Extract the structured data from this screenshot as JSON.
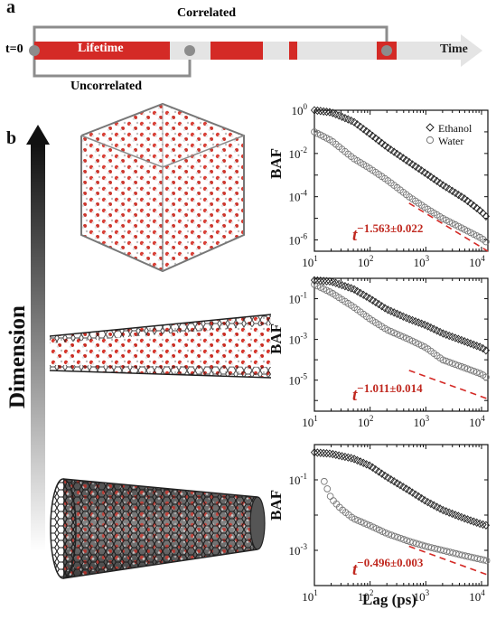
{
  "panel_a": {
    "letter": "a",
    "t0_label": "t=0",
    "lifetime_label": "Lifetime",
    "time_label": "Time",
    "correlated_label": "Correlated",
    "uncorrelated_label": "Uncorrelated",
    "colors": {
      "red": "#d42a26",
      "gray_bar": "#e4e4e4",
      "bracket": "#8c8c8c"
    }
  },
  "panel_b": {
    "letter": "b",
    "dimension_label": "Dimension",
    "shared_xlabel": "Lag (ps)",
    "structures": [
      "bulk-box",
      "wide-nanotube",
      "narrow-nanotube"
    ]
  },
  "chart_data": [
    {
      "type": "scatter",
      "ylabel": "BAF",
      "xscale": "log",
      "yscale": "log",
      "xlim": [
        10,
        13000
      ],
      "ylim": [
        3e-07,
        1
      ],
      "x_ticks": [
        "10^1",
        "10^2",
        "10^3",
        "10^4"
      ],
      "y_ticks": [
        "10^0",
        "10^-2",
        "10^-4",
        "10^-6"
      ],
      "legend": {
        "placement": "top-right",
        "entries": [
          "Ethanol",
          "Water"
        ]
      },
      "annotation": {
        "base": "t",
        "exponent": "−1.563±0.022",
        "color": "#c0281f"
      },
      "series": [
        {
          "name": "Ethanol",
          "marker": "diamond",
          "x": [
            10,
            20,
            50,
            100,
            200,
            500,
            1000,
            2000,
            5000,
            10000,
            13000
          ],
          "y": [
            1,
            0.8,
            0.3,
            0.08,
            0.02,
            0.004,
            0.0012,
            0.00035,
            8e-05,
            2e-05,
            1e-05
          ]
        },
        {
          "name": "Water",
          "marker": "circle",
          "x": [
            10,
            20,
            50,
            100,
            200,
            500,
            1000,
            2000,
            5000,
            10000,
            13000
          ],
          "y": [
            0.1,
            0.04,
            0.006,
            0.002,
            0.0006,
            0.0001,
            3e-05,
            1e-05,
            3e-06,
            1.2e-06,
            7e-07
          ]
        }
      ],
      "fit_line": {
        "x": [
          500,
          13000
        ],
        "y": [
          5e-05,
          3e-07
        ],
        "style": "dashed",
        "color": "#d42a26"
      }
    },
    {
      "type": "scatter",
      "ylabel": "BAF",
      "xscale": "log",
      "yscale": "log",
      "xlim": [
        10,
        13000
      ],
      "ylim": [
        3e-07,
        1
      ],
      "x_ticks": [
        "10^1",
        "10^2",
        "10^3",
        "10^4"
      ],
      "y_ticks": [
        "10^-1",
        "10^-3",
        "10^-5"
      ],
      "annotation": {
        "base": "t",
        "exponent": "−1.011±0.014",
        "color": "#c0281f"
      },
      "series": [
        {
          "name": "Ethanol",
          "marker": "diamond",
          "x": [
            10,
            20,
            50,
            100,
            200,
            500,
            1000,
            2000,
            5000,
            10000,
            13000
          ],
          "y": [
            0.8,
            0.7,
            0.3,
            0.1,
            0.03,
            0.01,
            0.005,
            0.002,
            0.0008,
            0.0004,
            0.00025
          ]
        },
        {
          "name": "Water",
          "marker": "circle",
          "x": [
            10,
            20,
            50,
            100,
            200,
            500,
            1000,
            2000,
            5000,
            10000,
            13000
          ],
          "y": [
            0.5,
            0.2,
            0.04,
            0.01,
            0.003,
            0.001,
            0.0004,
            0.0001,
            4e-05,
            2e-05,
            1.2e-05
          ]
        }
      ],
      "fit_line": {
        "x": [
          500,
          13000
        ],
        "y": [
          3e-05,
          1.2e-06
        ],
        "style": "dashed",
        "color": "#d42a26"
      }
    },
    {
      "type": "scatter",
      "ylabel": "BAF",
      "xlabel": "Lag (ps)",
      "xscale": "log",
      "yscale": "log",
      "xlim": [
        10,
        13000
      ],
      "ylim": [
        0.0001,
        1
      ],
      "x_ticks": [
        "10^1",
        "10^2",
        "10^3",
        "10^4"
      ],
      "y_ticks": [
        "10^-1",
        "10^-3"
      ],
      "annotation": {
        "base": "t",
        "exponent": "−0.496±0.003",
        "color": "#c0281f"
      },
      "series": [
        {
          "name": "Ethanol",
          "marker": "diamond",
          "x": [
            10,
            20,
            50,
            100,
            200,
            500,
            1000,
            2000,
            5000,
            10000,
            13000
          ],
          "y": [
            0.6,
            0.55,
            0.4,
            0.25,
            0.12,
            0.05,
            0.025,
            0.014,
            0.008,
            0.0055,
            0.005
          ]
        },
        {
          "name": "Water",
          "marker": "circle",
          "x": [
            15,
            20,
            30,
            50,
            100,
            200,
            500,
            1000,
            2000,
            5000,
            10000,
            13000
          ],
          "y": [
            0.09,
            0.03,
            0.015,
            0.008,
            0.005,
            0.003,
            0.0018,
            0.0013,
            0.001,
            0.0007,
            0.00055,
            0.0005
          ]
        }
      ],
      "fit_line": {
        "x": [
          500,
          13000
        ],
        "y": [
          0.0013,
          0.0002
        ],
        "style": "dashed",
        "color": "#d42a26"
      }
    }
  ]
}
